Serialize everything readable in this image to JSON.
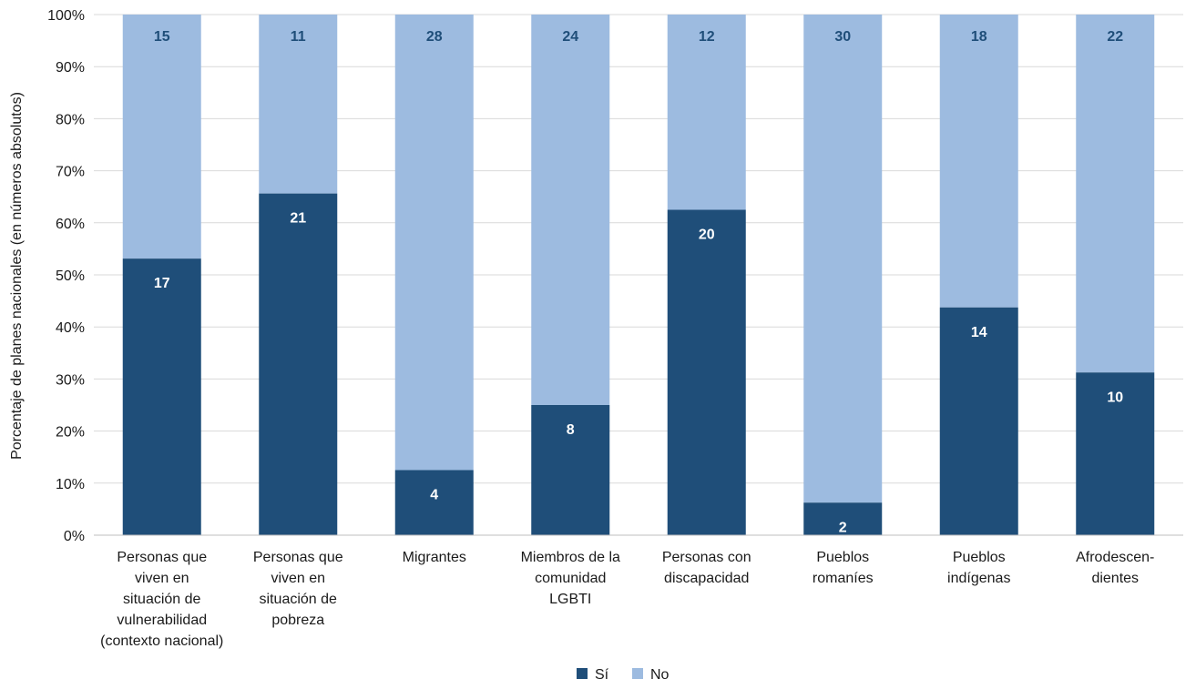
{
  "chart_data": {
    "type": "bar",
    "stacked": true,
    "normalized": true,
    "ylabel": "Porcentaje de planes nacionales (en números absolutos)",
    "ylim": [
      0,
      100
    ],
    "yticks": [
      "0%",
      "10%",
      "20%",
      "30%",
      "40%",
      "50%",
      "60%",
      "70%",
      "80%",
      "90%",
      "100%"
    ],
    "categories": [
      [
        "Personas que",
        "viven en",
        "situación de",
        "vulnerabilidad",
        "(contexto nacional)"
      ],
      [
        "Personas que",
        "viven en",
        "situación de",
        "pobreza"
      ],
      [
        "Migrantes"
      ],
      [
        "Miembros de la",
        "comunidad",
        "LGBTI"
      ],
      [
        "Personas con",
        "discapacidad"
      ],
      [
        "Pueblos",
        "romaníes"
      ],
      [
        "Pueblos",
        "indígenas"
      ],
      [
        "Afrodescen-",
        "dientes"
      ]
    ],
    "series": [
      {
        "name": "Sí",
        "color": "#1f4e79",
        "values": [
          17,
          21,
          4,
          8,
          20,
          2,
          14,
          10
        ]
      },
      {
        "name": "No",
        "color": "#9dbbe0",
        "values": [
          15,
          11,
          28,
          24,
          12,
          30,
          18,
          22
        ]
      }
    ],
    "grid": true,
    "legend": "bottom-center"
  }
}
